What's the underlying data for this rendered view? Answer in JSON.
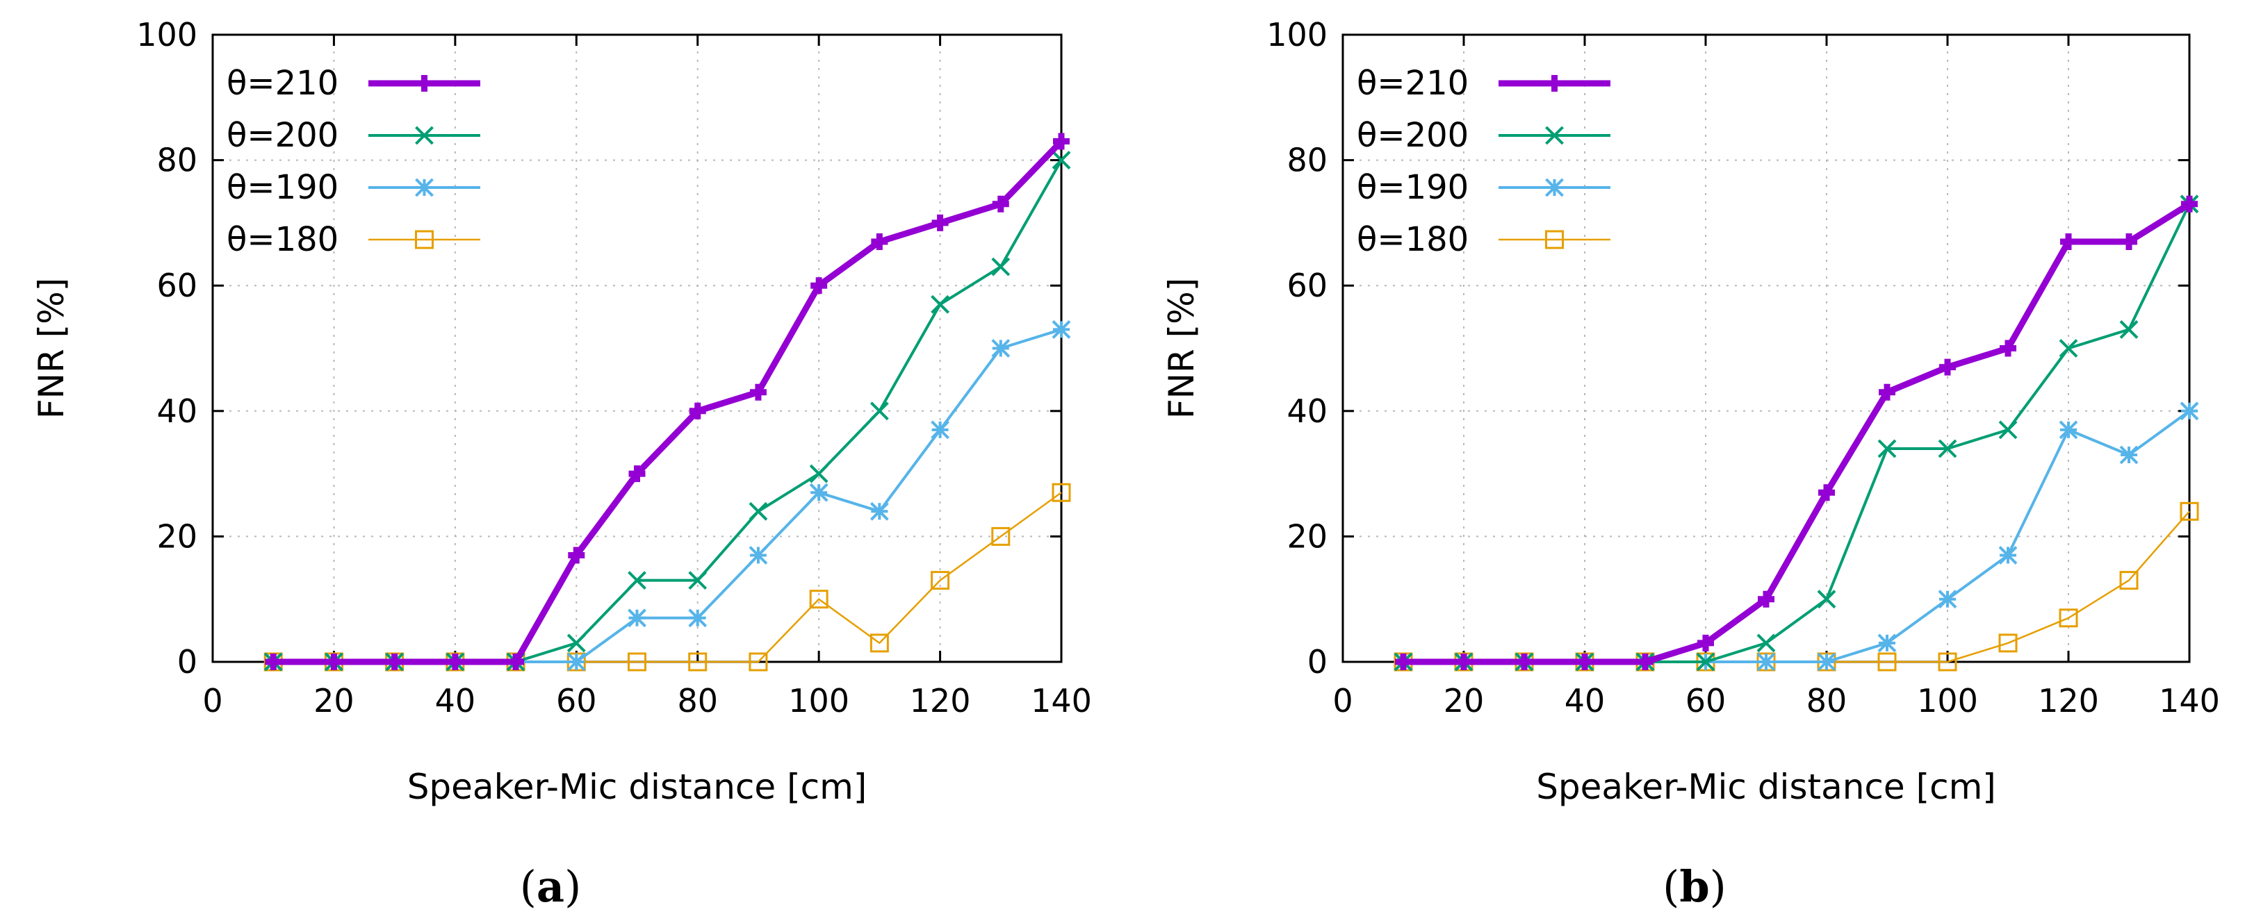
{
  "chart_data": [
    {
      "type": "line",
      "caption_letter": "a",
      "xlabel": "Speaker-Mic distance [cm]",
      "ylabel": "FNR [%]",
      "xlim": [
        0,
        140
      ],
      "ylim": [
        0,
        100
      ],
      "xticks": [
        0,
        20,
        40,
        60,
        80,
        100,
        120,
        140
      ],
      "yticks": [
        0,
        20,
        40,
        60,
        80,
        100
      ],
      "grid": true,
      "legend_position": "top-left",
      "x": [
        10,
        20,
        30,
        40,
        50,
        60,
        70,
        80,
        90,
        100,
        110,
        120,
        130,
        140
      ],
      "series": [
        {
          "name": "θ=210",
          "color": "#9400d3",
          "marker": "plus",
          "values": [
            0,
            0,
            0,
            0,
            0,
            17,
            30,
            40,
            43,
            60,
            67,
            70,
            73,
            83
          ]
        },
        {
          "name": "θ=200",
          "color": "#009e73",
          "marker": "cross",
          "values": [
            0,
            0,
            0,
            0,
            0,
            3,
            13,
            13,
            24,
            30,
            40,
            57,
            63,
            80
          ]
        },
        {
          "name": "θ=190",
          "color": "#56b4e9",
          "marker": "star",
          "values": [
            0,
            0,
            0,
            0,
            0,
            0,
            7,
            7,
            17,
            27,
            24,
            37,
            50,
            53
          ]
        },
        {
          "name": "θ=180",
          "color": "#e69f00",
          "marker": "square",
          "values": [
            0,
            0,
            0,
            0,
            0,
            0,
            0,
            0,
            0,
            10,
            3,
            13,
            20,
            27
          ]
        }
      ]
    },
    {
      "type": "line",
      "caption_letter": "b",
      "xlabel": "Speaker-Mic distance [cm]",
      "ylabel": "FNR [%]",
      "xlim": [
        0,
        140
      ],
      "ylim": [
        0,
        100
      ],
      "xticks": [
        0,
        20,
        40,
        60,
        80,
        100,
        120,
        140
      ],
      "yticks": [
        0,
        20,
        40,
        60,
        80,
        100
      ],
      "grid": true,
      "legend_position": "top-left",
      "x": [
        10,
        20,
        30,
        40,
        50,
        60,
        70,
        80,
        90,
        100,
        110,
        120,
        130,
        140
      ],
      "series": [
        {
          "name": "θ=210",
          "color": "#9400d3",
          "marker": "plus",
          "values": [
            0,
            0,
            0,
            0,
            0,
            3,
            10,
            27,
            43,
            47,
            50,
            67,
            67,
            73
          ]
        },
        {
          "name": "θ=200",
          "color": "#009e73",
          "marker": "cross",
          "values": [
            0,
            0,
            0,
            0,
            0,
            0,
            3,
            10,
            34,
            34,
            37,
            50,
            53,
            73
          ]
        },
        {
          "name": "θ=190",
          "color": "#56b4e9",
          "marker": "star",
          "values": [
            0,
            0,
            0,
            0,
            0,
            0,
            0,
            0,
            3,
            10,
            17,
            37,
            33,
            40
          ]
        },
        {
          "name": "θ=180",
          "color": "#e69f00",
          "marker": "square",
          "values": [
            0,
            0,
            0,
            0,
            0,
            0,
            0,
            0,
            0,
            0,
            3,
            7,
            13,
            24
          ]
        }
      ]
    }
  ]
}
